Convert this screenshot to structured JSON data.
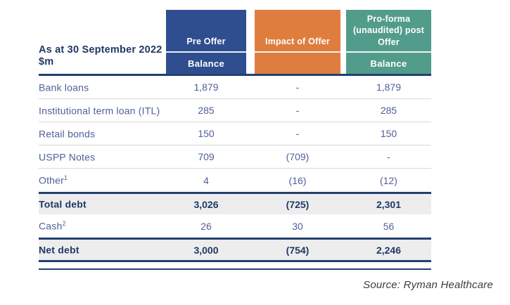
{
  "table": {
    "title_line1": "As at 30 September 2022",
    "title_line2": "$m",
    "columns": [
      {
        "title": "Pre Offer",
        "subtitle": "Balance",
        "color": "#2F4E8F"
      },
      {
        "title": "Impact of Offer",
        "subtitle": "",
        "color": "#DF7D3E"
      },
      {
        "title": "Pro-forma (unaudited) post Offer",
        "subtitle": "Balance",
        "color": "#529C8C"
      }
    ],
    "rows": [
      {
        "label": "Bank loans",
        "sup": "",
        "values": [
          "1,879",
          "-",
          "1,879"
        ],
        "style": "normal"
      },
      {
        "label": "Institutional term loan (ITL)",
        "sup": "",
        "values": [
          "285",
          "-",
          "285"
        ],
        "style": "normal"
      },
      {
        "label": "Retail bonds",
        "sup": "",
        "values": [
          "150",
          "-",
          "150"
        ],
        "style": "normal"
      },
      {
        "label": "USPP Notes",
        "sup": "",
        "values": [
          "709",
          "(709)",
          "-"
        ],
        "style": "normal"
      },
      {
        "label": "Other",
        "sup": "1",
        "values": [
          "4",
          "(16)",
          "(12)"
        ],
        "style": "normal"
      },
      {
        "label": "Total debt",
        "sup": "",
        "values": [
          "3,026",
          "(725)",
          "2,301"
        ],
        "style": "total"
      },
      {
        "label": "Cash",
        "sup": "2",
        "values": [
          "26",
          "30",
          "56"
        ],
        "style": "normal"
      },
      {
        "label": "Net debt",
        "sup": "",
        "values": [
          "3,000",
          "(754)",
          "2,246"
        ],
        "style": "total-final"
      }
    ]
  },
  "source": "Source: Ryman Healthcare",
  "colors": {
    "navy_text": "#203864",
    "navy_border": "#24406F",
    "blue_header": "#2F4E8F",
    "orange_header": "#DF7D3E",
    "teal_header": "#529C8C",
    "row_text": "#4F5F99",
    "total_row_bg": "#EDEDEE",
    "separator": "#D8D8D8"
  }
}
